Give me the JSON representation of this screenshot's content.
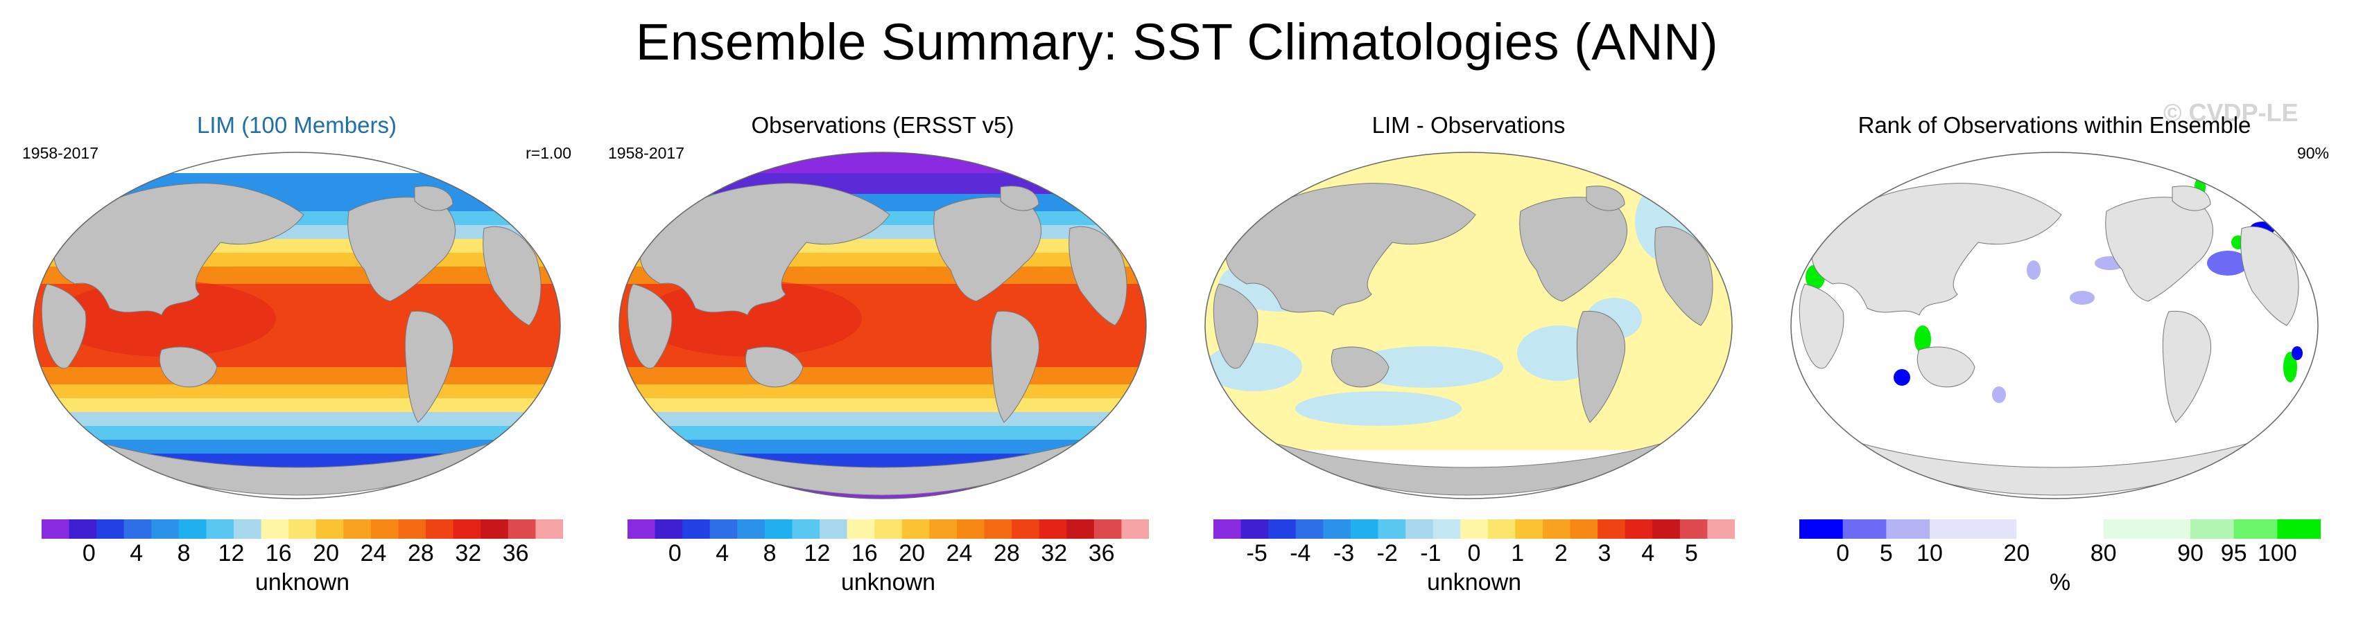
{
  "title": "Ensemble Summary: SST Climatologies (ANN)",
  "watermark": "© CVDP-LE",
  "panels": [
    {
      "title": "LIM (100 Members)",
      "left_label": "1958-2017",
      "right_label": "r=1.00",
      "type": "sst",
      "colorbar": {
        "colors": [
          "#8a2be2",
          "#3e1fd1",
          "#2242e6",
          "#2e6fe8",
          "#2b92ea",
          "#20b0f0",
          "#58c8f0",
          "#a6d7ec",
          "#fff7a6",
          "#fde46a",
          "#fbc232",
          "#f9a21f",
          "#f78814",
          "#f36a12",
          "#ef4314",
          "#e32416",
          "#c8171a",
          "#df4a4e",
          "#f5a3a5"
        ],
        "ticks": [
          "0",
          "4",
          "8",
          "12",
          "16",
          "20",
          "24",
          "28",
          "32",
          "36"
        ],
        "label": "unknown"
      }
    },
    {
      "title": "Observations (ERSST v5)",
      "left_label": "1958-2017",
      "right_label": "",
      "type": "sst_obs",
      "colorbar": {
        "colors": [
          "#8a2be2",
          "#3e1fd1",
          "#2242e6",
          "#2e6fe8",
          "#2b92ea",
          "#20b0f0",
          "#58c8f0",
          "#a6d7ec",
          "#fff7a6",
          "#fde46a",
          "#fbc232",
          "#f9a21f",
          "#f78814",
          "#f36a12",
          "#ef4314",
          "#e32416",
          "#c8171a",
          "#df4a4e",
          "#f5a3a5"
        ],
        "ticks": [
          "0",
          "4",
          "8",
          "12",
          "16",
          "20",
          "24",
          "28",
          "32",
          "36"
        ],
        "label": "unknown"
      }
    },
    {
      "title": "LIM - Observations",
      "left_label": "",
      "right_label": "",
      "type": "diff",
      "colorbar": {
        "colors": [
          "#8a2be2",
          "#3e1fd1",
          "#2242e6",
          "#2e6fe8",
          "#2b92ea",
          "#20b0f0",
          "#58c8f0",
          "#a6d7ec",
          "#c3e6f3",
          "#fff7a6",
          "#fde46a",
          "#fbc232",
          "#f9a21f",
          "#f78814",
          "#ef4314",
          "#e32416",
          "#c8171a",
          "#df4a4e",
          "#f5a3a5"
        ],
        "ticks": [
          "-5",
          "-4",
          "-3",
          "-2",
          "-1",
          "0",
          "1",
          "2",
          "3",
          "4",
          "5"
        ],
        "label": "unknown"
      }
    },
    {
      "title": "Rank of Observations within Ensemble",
      "left_label": "",
      "right_label": "90%",
      "type": "rank",
      "colorbar": {
        "colors": [
          "#0000ff",
          "#6b6bf5",
          "#b3b3f5",
          "#e3e3fb",
          "#e3e3fb",
          "#ffffff",
          "#ffffff",
          "#e3fbe3",
          "#e3fbe3",
          "#b3f5b3",
          "#6bf56b",
          "#00ee00"
        ],
        "ticks": [
          "0",
          "5",
          "10",
          "20",
          "80",
          "90",
          "95",
          "100"
        ],
        "tick_positions": [
          1,
          2,
          3,
          5,
          7,
          9,
          10,
          11
        ],
        "label": "%"
      }
    }
  ]
}
